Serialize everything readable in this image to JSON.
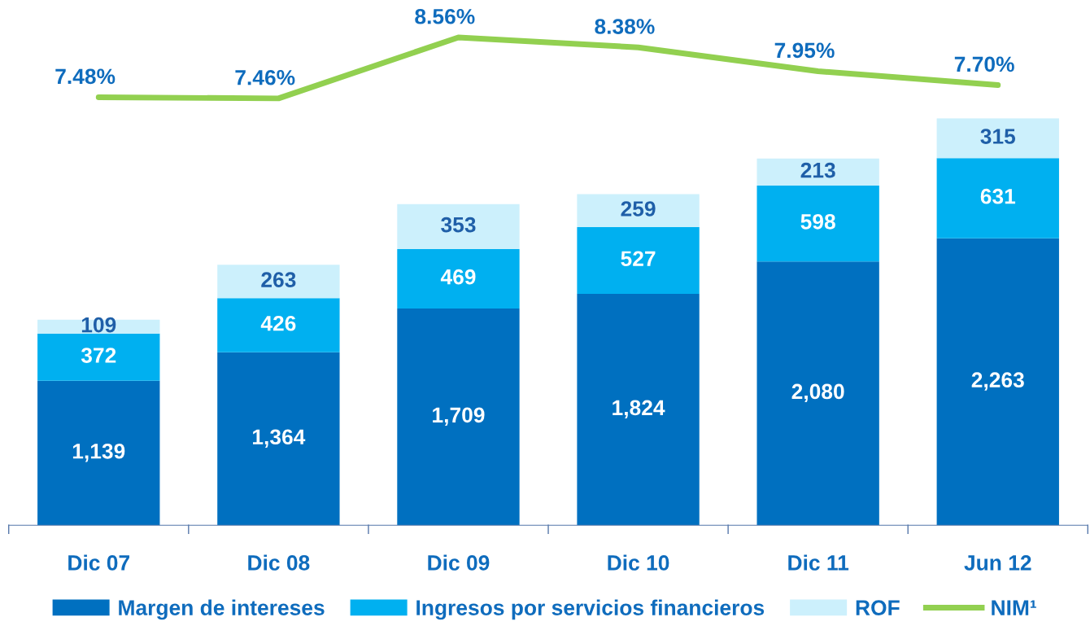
{
  "chart_data": [
    {
      "type": "line",
      "categories": [
        null,
        null,
        null,
        null,
        null,
        null
      ],
      "series": [
        {
          "name": "NIM¹",
          "color": "#92d050",
          "values": [
            7.48,
            7.46,
            8.56,
            8.38,
            7.95,
            7.7
          ],
          "value_labels": [
            "7.48%",
            "7.46%",
            "8.56%",
            "8.38%",
            "7.95%",
            "7.70%"
          ]
        }
      ],
      "tick_labels": false,
      "legend": "bottom",
      "grid": false
    },
    {
      "type": "bar",
      "stacked": true,
      "categories": [
        "Dic 07",
        "Dic 08",
        "Dic 09",
        "Dic 10",
        "Dic 11",
        "Jun 12"
      ],
      "series": [
        {
          "name": "Margen de intereses",
          "color": "#0070c0",
          "values": [
            1139,
            1364,
            1709,
            1824,
            2080,
            2263
          ],
          "value_labels": [
            "1,139",
            "1,364",
            "1,709",
            "1,824",
            "2,080",
            "2,263"
          ]
        },
        {
          "name": "Ingresos por servicios financieros",
          "color": "#00b0f0",
          "values": [
            372,
            426,
            469,
            527,
            598,
            631
          ],
          "value_labels": [
            "372",
            "426",
            "469",
            "527",
            "598",
            "631"
          ]
        },
        {
          "name": "ROF",
          "color": "#ccf0fc",
          "values": [
            109,
            263,
            353,
            259,
            213,
            315
          ],
          "value_labels": [
            "109",
            "263",
            "353",
            "259",
            "213",
            "315"
          ]
        }
      ],
      "ylim": [
        0,
        3209
      ],
      "tick_labels": "x",
      "legend": "bottom",
      "grid": false
    }
  ]
}
